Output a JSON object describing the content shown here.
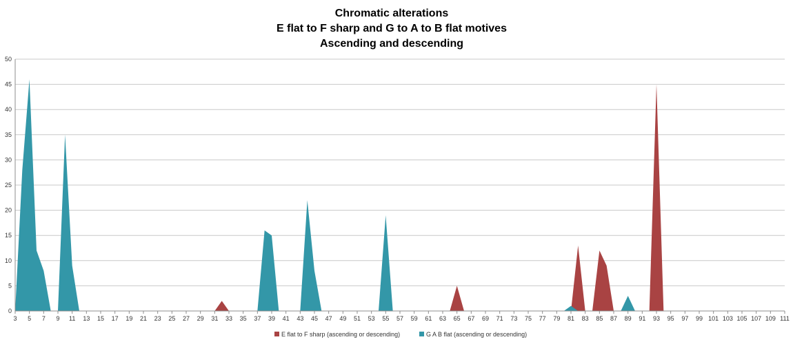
{
  "chart_data": {
    "type": "area",
    "title": [
      "Chromatic alterations",
      "E flat to F sharp and G to A to B flat motives",
      "Ascending and descending"
    ],
    "xlabel": "",
    "ylabel": "",
    "xlim": [
      3,
      111
    ],
    "ylim": [
      0,
      50
    ],
    "y_ticks": [
      0,
      5,
      10,
      15,
      20,
      25,
      30,
      35,
      40,
      45,
      50
    ],
    "x_ticks": [
      "3",
      "5",
      "7",
      "9",
      "11",
      "13",
      "15",
      "17",
      "19",
      "21",
      "23",
      "25",
      "27",
      "29",
      "31",
      "33",
      "35",
      "37",
      "39",
      "41",
      "43",
      "45",
      "47",
      "49",
      "51",
      "53",
      "55",
      "57",
      "59",
      "61",
      "63",
      "65",
      "67",
      "69",
      "71",
      "73",
      "75",
      "77",
      "79",
      "81",
      "83",
      "85",
      "87",
      "89",
      "91",
      "93",
      "95",
      "97",
      "99",
      "101",
      "103",
      "105",
      "107",
      "109",
      "111"
    ],
    "grid": true,
    "legend_position": "bottom",
    "series": [
      {
        "name": "E flat to F sharp (ascending or descending)",
        "color": "#A94343",
        "points": [
          [
            31,
            0
          ],
          [
            32,
            2
          ],
          [
            33,
            0
          ],
          [
            64,
            0
          ],
          [
            65,
            5
          ],
          [
            66,
            0
          ],
          [
            81,
            0
          ],
          [
            82,
            13
          ],
          [
            83,
            0
          ],
          [
            84,
            0
          ],
          [
            85,
            12
          ],
          [
            86,
            9
          ],
          [
            87,
            0
          ],
          [
            92,
            0
          ],
          [
            93,
            45
          ],
          [
            94,
            0
          ]
        ]
      },
      {
        "name": "G A B flat (ascending or descending)",
        "color": "#3397A8",
        "points": [
          [
            3,
            0
          ],
          [
            4,
            28
          ],
          [
            5,
            46
          ],
          [
            6,
            12
          ],
          [
            7,
            8
          ],
          [
            8,
            0
          ],
          [
            9,
            0
          ],
          [
            10,
            35
          ],
          [
            11,
            9
          ],
          [
            12,
            0
          ],
          [
            37,
            0
          ],
          [
            38,
            16
          ],
          [
            39,
            15
          ],
          [
            40,
            0
          ],
          [
            43,
            0
          ],
          [
            44,
            22
          ],
          [
            45,
            8
          ],
          [
            46,
            0
          ],
          [
            54,
            0
          ],
          [
            55,
            19
          ],
          [
            56,
            0
          ],
          [
            80,
            0
          ],
          [
            81,
            1
          ],
          [
            82,
            0
          ],
          [
            88,
            0
          ],
          [
            89,
            3
          ],
          [
            90,
            0
          ]
        ]
      }
    ]
  }
}
